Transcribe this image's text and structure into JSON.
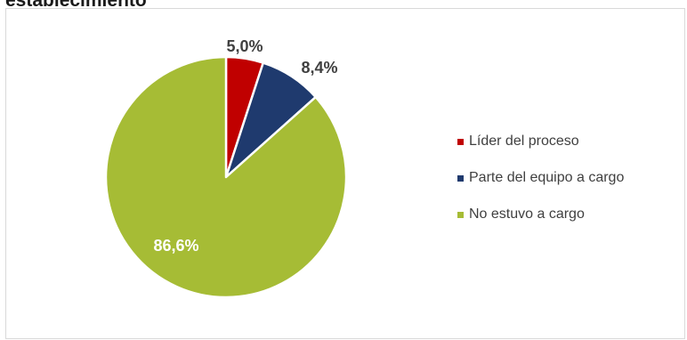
{
  "page": {
    "title_fragment": "establecimiento"
  },
  "chart_data": {
    "type": "pie",
    "title": "",
    "slices": [
      {
        "label": "Líder del proceso",
        "value": 5.0,
        "display": "5,0%",
        "color": "#c00000",
        "label_color": "#404040"
      },
      {
        "label": "Parte del equipo a cargo",
        "value": 8.4,
        "display": "8,4%",
        "color": "#1f3a6e",
        "label_color": "#404040"
      },
      {
        "label": "No estuvo a cargo",
        "value": 86.6,
        "display": "86,6%",
        "color": "#a6bc35",
        "label_color": "#ffffff"
      }
    ],
    "legend_position": "right",
    "start_angle_deg": 0,
    "direction": "clockwise"
  }
}
